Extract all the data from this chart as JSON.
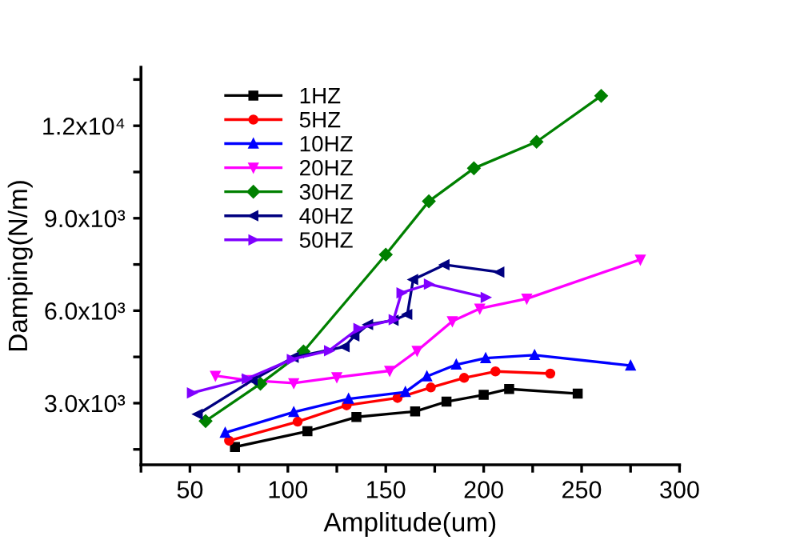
{
  "chart_data": {
    "type": "line",
    "xlabel": "Amplitude(um)",
    "ylabel": "Damping(N/m)",
    "xlim": [
      25,
      300
    ],
    "ylim": [
      1000,
      13900
    ],
    "xticks": [
      {
        "value": 25,
        "label": null
      },
      50,
      {
        "value": 75,
        "label": null
      },
      100,
      {
        "value": 125,
        "label": null
      },
      150,
      {
        "value": 175,
        "label": null
      },
      200,
      {
        "value": 225,
        "label": null
      },
      250,
      {
        "value": 275,
        "label": null
      },
      300
    ],
    "yticks": [
      {
        "value": 1500,
        "label": null
      },
      {
        "value": 3000,
        "label": "3.0x10³"
      },
      {
        "value": 4500,
        "label": null
      },
      {
        "value": 6000,
        "label": "6.0x10³"
      },
      {
        "value": 7500,
        "label": null
      },
      {
        "value": 9000,
        "label": "9.0x10³"
      },
      {
        "value": 10500,
        "label": null
      },
      {
        "value": 12000,
        "label": "1.2x10⁴"
      },
      {
        "value": 13500,
        "label": null
      }
    ],
    "grid": false,
    "legend": "top left",
    "series": [
      {
        "name": "1HZ",
        "color": "#000000",
        "marker": "square",
        "x": [
          73,
          110,
          135,
          165,
          181,
          200,
          213,
          248
        ],
        "values": [
          1580,
          2090,
          2550,
          2730,
          3050,
          3270,
          3460,
          3310
        ]
      },
      {
        "name": "5HZ",
        "color": "#ff0000",
        "marker": "circle",
        "x": [
          70,
          105,
          130,
          156,
          173,
          190,
          206,
          234
        ],
        "values": [
          1780,
          2400,
          2930,
          3170,
          3510,
          3820,
          4030,
          3960
        ]
      },
      {
        "name": "10HZ",
        "color": "#0000ff",
        "marker": "triangle",
        "x": [
          68,
          103,
          131,
          160,
          171,
          186,
          201,
          226,
          275
        ],
        "values": [
          2040,
          2710,
          3140,
          3360,
          3870,
          4250,
          4460,
          4560,
          4220
        ]
      },
      {
        "name": "20HZ",
        "color": "#ff00ff",
        "marker": "triangle-down",
        "x": [
          63,
          79,
          103,
          125,
          152,
          166,
          184,
          198,
          222,
          280
        ],
        "values": [
          3890,
          3750,
          3650,
          3840,
          4050,
          4700,
          5660,
          6070,
          6390,
          7660
        ]
      },
      {
        "name": "30HZ",
        "color": "#008000",
        "marker": "diamond",
        "x": [
          58,
          86,
          108,
          150,
          172,
          195,
          227,
          260
        ],
        "values": [
          2420,
          3630,
          4680,
          7820,
          9550,
          10620,
          11480,
          12970
        ]
      },
      {
        "name": "40HZ",
        "color": "#000080",
        "marker": "triangle-left",
        "x": [
          54,
          82,
          103,
          129,
          134,
          141,
          154,
          161,
          164,
          180,
          208
        ],
        "values": [
          2640,
          3750,
          4490,
          4830,
          5180,
          5550,
          5690,
          5880,
          7010,
          7490,
          7250
        ]
      },
      {
        "name": "50HZ",
        "color": "#8000ff",
        "marker": "triangle-right",
        "x": [
          51,
          79,
          102,
          121,
          136,
          154,
          158,
          172,
          201
        ],
        "values": [
          3330,
          3790,
          4420,
          4700,
          5420,
          5710,
          6580,
          6860,
          6430
        ]
      }
    ]
  }
}
